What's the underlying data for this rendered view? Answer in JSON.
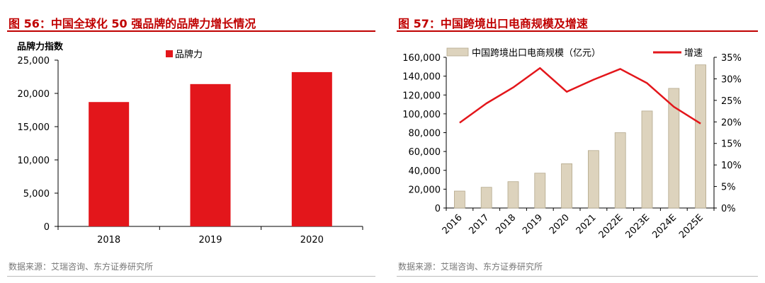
{
  "colors": {
    "accent": "#c00000",
    "bar_red": "#e3161b",
    "bar_tan": "#ddd3bd",
    "line_red": "#e3161b",
    "axis": "#000000",
    "source_gray": "#777777"
  },
  "left": {
    "title": "图 56：中国全球化 50 强品牌的品牌力增长情况",
    "source": "数据来源：艾瑞咨询、东方证券研究所"
  },
  "right": {
    "title": "图 57：中国跨境出口电商规模及增速",
    "source": "数据来源：艾瑞咨询、东方证券研究所"
  },
  "chart_data": [
    {
      "type": "bar",
      "title": "",
      "ylabel": "品牌力指数",
      "categories": [
        "2018",
        "2019",
        "2020"
      ],
      "series": [
        {
          "name": "品牌力",
          "values": [
            18700,
            21400,
            23200
          ]
        }
      ],
      "ylim": [
        0,
        25000
      ],
      "yticks": [
        "0",
        "5,000",
        "10,000",
        "15,000",
        "20,000",
        "25,000"
      ],
      "ytick_values": [
        0,
        5000,
        10000,
        15000,
        20000,
        25000
      ],
      "legend": "top-center",
      "grid": false
    },
    {
      "type": "bar",
      "title": "",
      "categories": [
        "2016",
        "2017",
        "2018",
        "2019",
        "2020",
        "2021",
        "2022E",
        "2023E",
        "2024E",
        "2025E"
      ],
      "series": [
        {
          "name": "中国跨境出口电商规模（亿元）",
          "type": "bar",
          "axis": "left",
          "values": [
            18000,
            22000,
            28000,
            37000,
            47000,
            61000,
            80000,
            103000,
            127000,
            152000
          ]
        },
        {
          "name": "增速",
          "type": "line",
          "axis": "right",
          "values": [
            19.8,
            24.3,
            28.0,
            32.5,
            27.0,
            29.8,
            32.3,
            29.0,
            23.5,
            19.6
          ]
        }
      ],
      "ylim": [
        0,
        160000
      ],
      "yticks": [
        "0",
        "20,000",
        "40,000",
        "60,000",
        "80,000",
        "100,000",
        "120,000",
        "140,000",
        "160,000"
      ],
      "ytick_values": [
        0,
        20000,
        40000,
        60000,
        80000,
        100000,
        120000,
        140000,
        160000
      ],
      "y2lim": [
        0,
        35
      ],
      "y2ticks": [
        "0%",
        "5%",
        "10%",
        "15%",
        "20%",
        "25%",
        "30%",
        "35%"
      ],
      "y2tick_values": [
        0,
        5,
        10,
        15,
        20,
        25,
        30,
        35
      ],
      "legend": "top",
      "grid": false
    }
  ]
}
